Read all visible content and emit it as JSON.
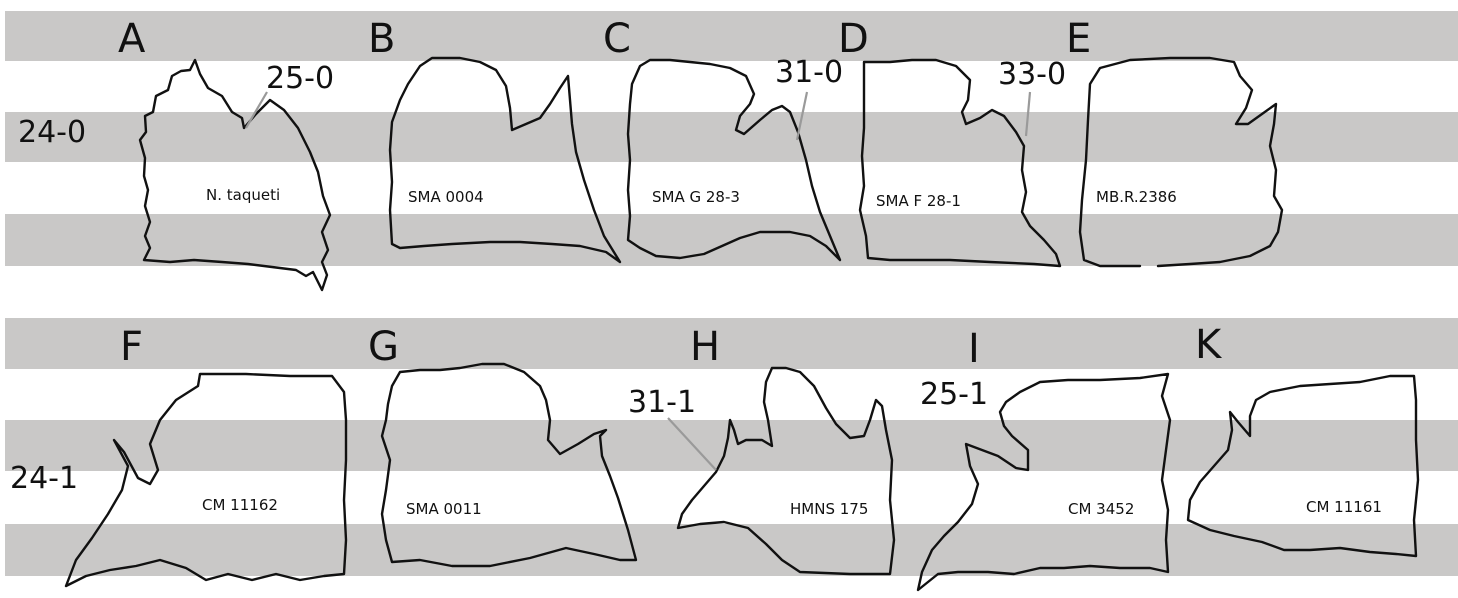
{
  "rows": [
    {
      "state_label": "24-0",
      "panels": [
        {
          "letter": "A",
          "specimen": "N. taqueti",
          "character_label": "25-0"
        },
        {
          "letter": "B",
          "specimen": "SMA 0004",
          "character_label": ""
        },
        {
          "letter": "C",
          "specimen": "SMA G 28-3",
          "character_label": "31-0"
        },
        {
          "letter": "D",
          "specimen": "SMA F 28-1",
          "character_label": "33-0"
        },
        {
          "letter": "E",
          "specimen": "MB.R.2386",
          "character_label": ""
        }
      ]
    },
    {
      "state_label": "24-1",
      "panels": [
        {
          "letter": "F",
          "specimen": "CM 11162",
          "character_label": ""
        },
        {
          "letter": "G",
          "specimen": "SMA 0011",
          "character_label": ""
        },
        {
          "letter": "H",
          "specimen": "HMNS 175",
          "character_label": "31-1"
        },
        {
          "letter": "I",
          "specimen": "CM 3452",
          "character_label": "25-1"
        },
        {
          "letter": "K",
          "specimen": "CM 11161",
          "character_label": ""
        }
      ]
    }
  ],
  "colors": {
    "band": "#c9c8c7",
    "outline": "#111111",
    "leader": "#9a9a9a"
  }
}
